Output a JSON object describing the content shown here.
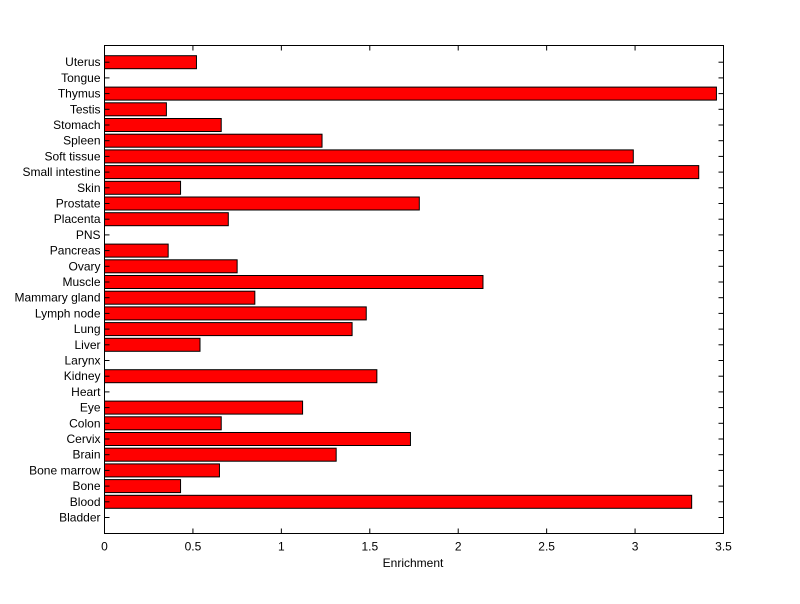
{
  "chart_data": {
    "type": "bar",
    "orientation": "horizontal",
    "xlabel": "Enrichment",
    "ylabel": "",
    "title": "",
    "xlim": [
      0,
      3.5
    ],
    "xticks": [
      0,
      0.5,
      1,
      1.5,
      2,
      2.5,
      3,
      3.5
    ],
    "xtick_labels": [
      "0",
      "0.5",
      "1",
      "1.5",
      "2",
      "2.5",
      "3",
      "3.5"
    ],
    "grid": false,
    "bar_color": "#ff0000",
    "bar_edge_color": "#000000",
    "categories": [
      "Bladder",
      "Blood",
      "Bone",
      "Bone marrow",
      "Brain",
      "Cervix",
      "Colon",
      "Eye",
      "Heart",
      "Kidney",
      "Larynx",
      "Liver",
      "Lung",
      "Lymph node",
      "Mammary gland",
      "Muscle",
      "Ovary",
      "Pancreas",
      "PNS",
      "Placenta",
      "Prostate",
      "Skin",
      "Small intestine",
      "Soft tissue",
      "Spleen",
      "Stomach",
      "Testis",
      "Thymus",
      "Tongue",
      "Uterus"
    ],
    "values": [
      0,
      3.32,
      0.43,
      0.65,
      1.31,
      1.73,
      0.66,
      1.12,
      0,
      1.54,
      0,
      0.54,
      1.4,
      1.48,
      0.85,
      2.14,
      0.75,
      0.36,
      0,
      0.7,
      1.78,
      0.43,
      3.36,
      2.99,
      1.23,
      0.66,
      0.35,
      3.46,
      0,
      0.52
    ]
  }
}
